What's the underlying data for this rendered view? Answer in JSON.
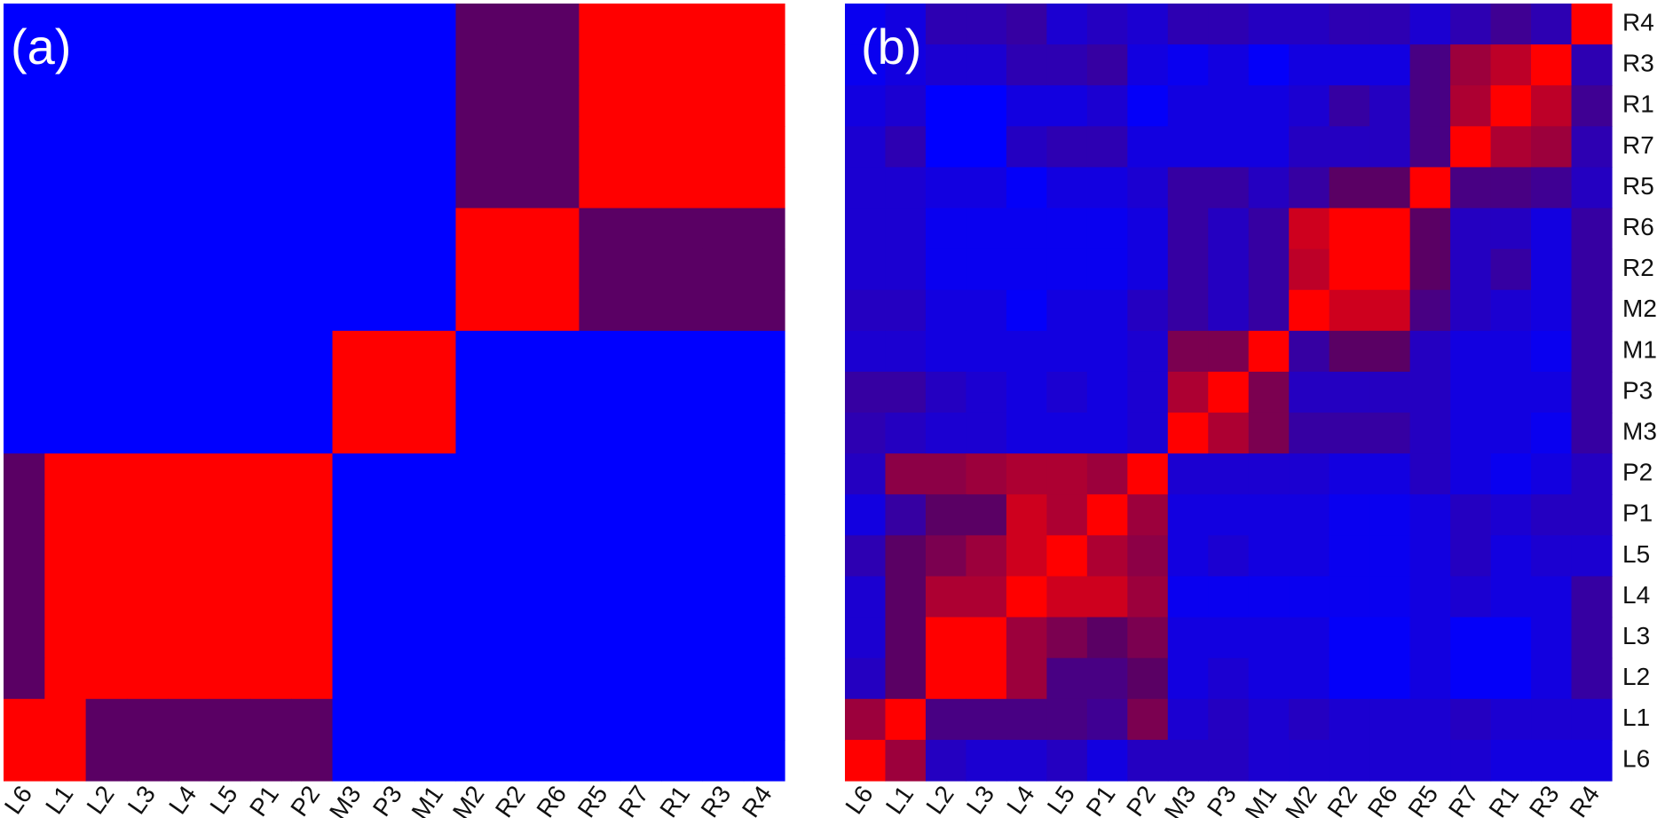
{
  "colors": {
    "low": "#0000ff",
    "mid": "#5a0064",
    "high": "#ff0000"
  },
  "chart_data": [
    {
      "type": "heatmap",
      "panel_label": "(a)",
      "x_categories": [
        "L6",
        "L1",
        "L2",
        "L3",
        "L4",
        "L5",
        "P1",
        "P2",
        "M3",
        "P3",
        "M1",
        "M2",
        "R2",
        "R6",
        "R5",
        "R7",
        "R1",
        "R3",
        "R4"
      ],
      "y_categories": [
        "R4",
        "R3",
        "R1",
        "R7",
        "R5",
        "R6",
        "R2",
        "M2",
        "M1",
        "P3",
        "M3",
        "P2",
        "P1",
        "L5",
        "L4",
        "L3",
        "L2",
        "L1",
        "L6"
      ],
      "value_scale": [
        0,
        1
      ],
      "blocks": [
        {
          "rows": [
            0,
            4
          ],
          "cols": [
            0,
            10
          ],
          "value": 0.0
        },
        {
          "rows": [
            0,
            4
          ],
          "cols": [
            11,
            13
          ],
          "value": 0.5
        },
        {
          "rows": [
            0,
            4
          ],
          "cols": [
            14,
            18
          ],
          "value": 1.0
        },
        {
          "rows": [
            5,
            7
          ],
          "cols": [
            0,
            10
          ],
          "value": 0.0
        },
        {
          "rows": [
            5,
            7
          ],
          "cols": [
            11,
            13
          ],
          "value": 1.0
        },
        {
          "rows": [
            5,
            7
          ],
          "cols": [
            14,
            18
          ],
          "value": 0.5
        },
        {
          "rows": [
            8,
            10
          ],
          "cols": [
            0,
            7
          ],
          "value": 0.0
        },
        {
          "rows": [
            8,
            10
          ],
          "cols": [
            8,
            10
          ],
          "value": 1.0
        },
        {
          "rows": [
            8,
            10
          ],
          "cols": [
            11,
            18
          ],
          "value": 0.0
        },
        {
          "rows": [
            11,
            16
          ],
          "cols": [
            0,
            0
          ],
          "value": 0.5
        },
        {
          "rows": [
            11,
            16
          ],
          "cols": [
            1,
            7
          ],
          "value": 1.0
        },
        {
          "rows": [
            11,
            16
          ],
          "cols": [
            8,
            18
          ],
          "value": 0.0
        },
        {
          "rows": [
            17,
            18
          ],
          "cols": [
            0,
            1
          ],
          "value": 1.0
        },
        {
          "rows": [
            17,
            18
          ],
          "cols": [
            2,
            7
          ],
          "value": 0.5
        },
        {
          "rows": [
            17,
            18
          ],
          "cols": [
            8,
            18
          ],
          "value": 0.0
        }
      ]
    },
    {
      "type": "heatmap",
      "panel_label": "(b)",
      "x_categories": [
        "L6",
        "L1",
        "L2",
        "L3",
        "L4",
        "L5",
        "P1",
        "P2",
        "M3",
        "P3",
        "M1",
        "M2",
        "R2",
        "R6",
        "R5",
        "R7",
        "R1",
        "R3",
        "R4"
      ],
      "y_categories": [
        "R4",
        "R3",
        "R1",
        "R7",
        "R5",
        "R6",
        "R2",
        "M2",
        "M1",
        "P3",
        "M3",
        "P2",
        "P1",
        "L5",
        "L4",
        "L3",
        "L2",
        "L1",
        "L6"
      ],
      "value_scale": [
        0,
        1
      ],
      "matrix": [
        [
          0.05,
          0.1,
          0.25,
          0.25,
          0.3,
          0.15,
          0.2,
          0.15,
          0.25,
          0.25,
          0.2,
          0.2,
          0.25,
          0.25,
          0.15,
          0.25,
          0.35,
          0.25,
          1.0
        ],
        [
          0.05,
          0.1,
          0.15,
          0.15,
          0.25,
          0.25,
          0.3,
          0.1,
          0.05,
          0.1,
          0.02,
          0.1,
          0.1,
          0.1,
          0.4,
          0.7,
          0.8,
          1.0,
          0.25
        ],
        [
          0.1,
          0.15,
          0.0,
          0.0,
          0.1,
          0.1,
          0.15,
          0.02,
          0.1,
          0.1,
          0.1,
          0.15,
          0.3,
          0.2,
          0.4,
          0.75,
          1.0,
          0.8,
          0.35
        ],
        [
          0.15,
          0.25,
          0.0,
          0.0,
          0.2,
          0.25,
          0.25,
          0.1,
          0.1,
          0.1,
          0.1,
          0.2,
          0.2,
          0.2,
          0.4,
          1.0,
          0.75,
          0.7,
          0.25
        ],
        [
          0.15,
          0.15,
          0.1,
          0.1,
          0.02,
          0.1,
          0.1,
          0.15,
          0.3,
          0.3,
          0.2,
          0.3,
          0.5,
          0.5,
          1.0,
          0.4,
          0.4,
          0.35,
          0.2
        ],
        [
          0.15,
          0.15,
          0.05,
          0.05,
          0.05,
          0.05,
          0.05,
          0.1,
          0.3,
          0.2,
          0.3,
          0.85,
          1.0,
          1.0,
          0.5,
          0.2,
          0.2,
          0.1,
          0.3
        ],
        [
          0.15,
          0.15,
          0.05,
          0.05,
          0.05,
          0.05,
          0.05,
          0.1,
          0.3,
          0.2,
          0.3,
          0.8,
          1.0,
          1.0,
          0.5,
          0.2,
          0.3,
          0.1,
          0.3
        ],
        [
          0.2,
          0.2,
          0.1,
          0.1,
          0.02,
          0.1,
          0.1,
          0.2,
          0.3,
          0.2,
          0.3,
          1.0,
          0.85,
          0.85,
          0.4,
          0.2,
          0.15,
          0.1,
          0.3
        ],
        [
          0.15,
          0.15,
          0.1,
          0.1,
          0.1,
          0.1,
          0.1,
          0.15,
          0.6,
          0.6,
          1.0,
          0.3,
          0.5,
          0.5,
          0.2,
          0.1,
          0.1,
          0.05,
          0.3
        ],
        [
          0.3,
          0.3,
          0.2,
          0.15,
          0.1,
          0.15,
          0.1,
          0.15,
          0.75,
          1.0,
          0.6,
          0.2,
          0.2,
          0.2,
          0.2,
          0.1,
          0.1,
          0.1,
          0.3
        ],
        [
          0.25,
          0.2,
          0.15,
          0.15,
          0.1,
          0.1,
          0.1,
          0.15,
          1.0,
          0.75,
          0.6,
          0.3,
          0.3,
          0.3,
          0.2,
          0.1,
          0.1,
          0.05,
          0.3
        ],
        [
          0.2,
          0.65,
          0.65,
          0.7,
          0.75,
          0.75,
          0.7,
          1.0,
          0.15,
          0.15,
          0.15,
          0.15,
          0.1,
          0.1,
          0.2,
          0.1,
          0.05,
          0.1,
          0.2
        ],
        [
          0.1,
          0.3,
          0.5,
          0.5,
          0.85,
          0.75,
          1.0,
          0.7,
          0.1,
          0.1,
          0.1,
          0.1,
          0.05,
          0.05,
          0.1,
          0.2,
          0.15,
          0.2,
          0.2
        ],
        [
          0.25,
          0.5,
          0.6,
          0.7,
          0.85,
          1.0,
          0.75,
          0.65,
          0.1,
          0.15,
          0.1,
          0.1,
          0.05,
          0.05,
          0.1,
          0.2,
          0.1,
          0.15,
          0.15
        ],
        [
          0.15,
          0.5,
          0.75,
          0.75,
          1.0,
          0.85,
          0.85,
          0.7,
          0.05,
          0.05,
          0.05,
          0.05,
          0.05,
          0.05,
          0.1,
          0.15,
          0.1,
          0.1,
          0.3
        ],
        [
          0.15,
          0.5,
          1.0,
          1.0,
          0.7,
          0.6,
          0.5,
          0.6,
          0.1,
          0.1,
          0.1,
          0.1,
          0.02,
          0.02,
          0.1,
          0.02,
          0.02,
          0.1,
          0.3
        ],
        [
          0.2,
          0.5,
          1.0,
          1.0,
          0.7,
          0.4,
          0.4,
          0.5,
          0.1,
          0.15,
          0.1,
          0.1,
          0.02,
          0.02,
          0.1,
          0.02,
          0.02,
          0.1,
          0.3
        ],
        [
          0.7,
          1.0,
          0.4,
          0.4,
          0.4,
          0.4,
          0.35,
          0.6,
          0.15,
          0.2,
          0.15,
          0.2,
          0.15,
          0.15,
          0.15,
          0.2,
          0.15,
          0.15,
          0.15
        ],
        [
          1.0,
          0.7,
          0.2,
          0.15,
          0.15,
          0.2,
          0.1,
          0.2,
          0.2,
          0.2,
          0.15,
          0.15,
          0.15,
          0.15,
          0.15,
          0.15,
          0.1,
          0.1,
          0.1
        ]
      ]
    }
  ]
}
